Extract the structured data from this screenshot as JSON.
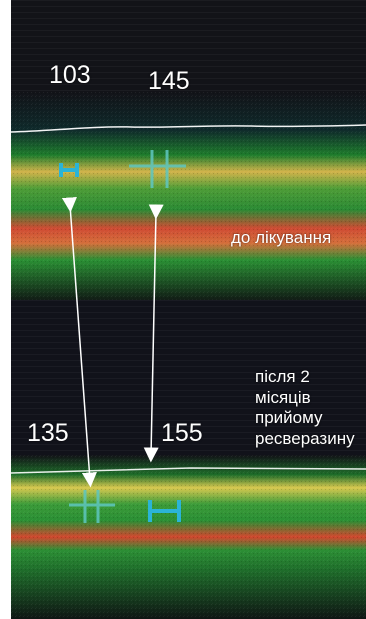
{
  "figure": {
    "before": {
      "value_left": "103",
      "value_right": "145",
      "caption": "до лікування"
    },
    "after": {
      "value_left": "135",
      "value_right": "155",
      "caption_lines": [
        "після 2",
        "місяців",
        "прийому",
        "ресверазину"
      ]
    }
  },
  "colors": {
    "background": "#121318",
    "layer_green": "#2f9a35",
    "layer_red": "#d8462f",
    "layer_yellow": "#d6c44b",
    "marker_cyan": "#2bb4d7",
    "arrow_white": "#ffffff"
  }
}
